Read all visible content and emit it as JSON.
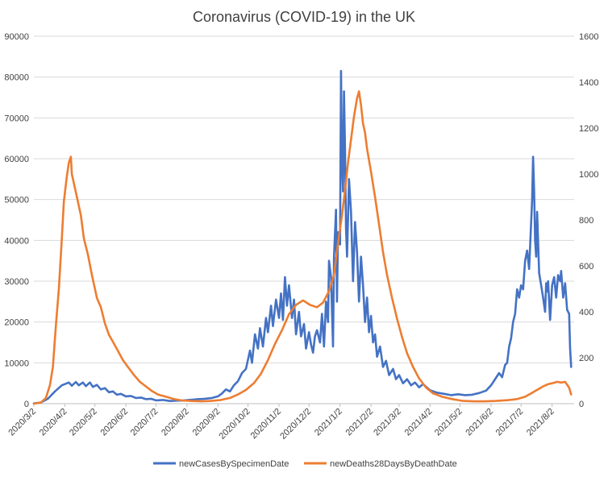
{
  "chart_data": {
    "type": "line",
    "title": "Coronavirus (COVID-19) in the UK",
    "xlabel": "",
    "ylabel": "",
    "y2label": "",
    "x_tick_labels": [
      "2020/3/2",
      "2020/4/2",
      "2020/5/2",
      "2020/6/2",
      "2020/7/2",
      "2020/8/2",
      "2020/9/2",
      "2020/10/2",
      "2020/11/2",
      "2020/12/2",
      "2021/1/2",
      "2021/2/2",
      "2021/3/2",
      "2021/4/2",
      "2021/5/2",
      "2021/6/2",
      "2021/7/2",
      "2021/8/2"
    ],
    "x_range": [
      "2020/3/2",
      "2021/8/24"
    ],
    "ylim": [
      0,
      90000
    ],
    "y_ticks": [
      "0",
      "10000",
      "20000",
      "30000",
      "40000",
      "50000",
      "60000",
      "70000",
      "80000",
      "90000"
    ],
    "y2lim": [
      0,
      1600
    ],
    "y2_ticks": [
      "0",
      "200",
      "400",
      "600",
      "800",
      "1000",
      "1200",
      "1400",
      "1600"
    ],
    "grid": true,
    "legend_position": "bottom",
    "series": [
      {
        "name": "newCasesBySpecimenDate",
        "axis": "left",
        "color": "#4472C4",
        "points": [
          [
            "2020/3/2",
            50
          ],
          [
            "2020/3/9",
            300
          ],
          [
            "2020/3/16",
            1200
          ],
          [
            "2020/3/23",
            3000
          ],
          [
            "2020/3/30",
            4500
          ],
          [
            "2020/4/2",
            4800
          ],
          [
            "2020/4/6",
            5200
          ],
          [
            "2020/4/9",
            4400
          ],
          [
            "2020/4/13",
            5300
          ],
          [
            "2020/4/16",
            4500
          ],
          [
            "2020/4/20",
            5200
          ],
          [
            "2020/4/23",
            4300
          ],
          [
            "2020/4/27",
            5200
          ],
          [
            "2020/4/30",
            4100
          ],
          [
            "2020/5/4",
            4600
          ],
          [
            "2020/5/8",
            3500
          ],
          [
            "2020/5/12",
            3800
          ],
          [
            "2020/5/16",
            2800
          ],
          [
            "2020/5/20",
            3000
          ],
          [
            "2020/5/24",
            2200
          ],
          [
            "2020/5/28",
            2400
          ],
          [
            "2020/6/2",
            1800
          ],
          [
            "2020/6/7",
            1900
          ],
          [
            "2020/6/12",
            1400
          ],
          [
            "2020/6/17",
            1500
          ],
          [
            "2020/6/22",
            1100
          ],
          [
            "2020/6/27",
            1200
          ],
          [
            "2020/7/2",
            800
          ],
          [
            "2020/7/9",
            900
          ],
          [
            "2020/7/16",
            650
          ],
          [
            "2020/7/23",
            750
          ],
          [
            "2020/7/30",
            800
          ],
          [
            "2020/8/6",
            950
          ],
          [
            "2020/8/13",
            1100
          ],
          [
            "2020/8/20",
            1200
          ],
          [
            "2020/8/27",
            1400
          ],
          [
            "2020/9/2",
            1800
          ],
          [
            "2020/9/6",
            2500
          ],
          [
            "2020/9/10",
            3500
          ],
          [
            "2020/9/14",
            3000
          ],
          [
            "2020/9/18",
            4500
          ],
          [
            "2020/9/22",
            5500
          ],
          [
            "2020/9/26",
            7500
          ],
          [
            "2020/9/30",
            8500
          ],
          [
            "2020/10/4",
            13000
          ],
          [
            "2020/10/6",
            10000
          ],
          [
            "2020/10/9",
            17000
          ],
          [
            "2020/10/12",
            13500
          ],
          [
            "2020/10/14",
            18500
          ],
          [
            "2020/10/17",
            14000
          ],
          [
            "2020/10/20",
            21000
          ],
          [
            "2020/10/22",
            17500
          ],
          [
            "2020/10/25",
            24000
          ],
          [
            "2020/10/27",
            19000
          ],
          [
            "2020/10/30",
            25500
          ],
          [
            "2020/11/2",
            21000
          ],
          [
            "2020/11/4",
            27000
          ],
          [
            "2020/11/6",
            20500
          ],
          [
            "2020/11/8",
            31000
          ],
          [
            "2020/11/10",
            24000
          ],
          [
            "2020/11/12",
            29000
          ],
          [
            "2020/11/15",
            21000
          ],
          [
            "2020/11/17",
            25500
          ],
          [
            "2020/11/19",
            17000
          ],
          [
            "2020/11/22",
            22500
          ],
          [
            "2020/11/24",
            16500
          ],
          [
            "2020/11/27",
            19500
          ],
          [
            "2020/11/29",
            13500
          ],
          [
            "2020/12/2",
            17500
          ],
          [
            "2020/12/4",
            14500
          ],
          [
            "2020/12/6",
            12500
          ],
          [
            "2020/12/8",
            16500
          ],
          [
            "2020/12/10",
            18000
          ],
          [
            "2020/12/13",
            15000
          ],
          [
            "2020/12/15",
            22000
          ],
          [
            "2020/12/17",
            14000
          ],
          [
            "2020/12/19",
            25000
          ],
          [
            "2020/12/21",
            20000
          ],
          [
            "2020/12/22",
            35000
          ],
          [
            "2020/12/24",
            31000
          ],
          [
            "2020/12/26",
            14000
          ],
          [
            "2020/12/27",
            36000
          ],
          [
            "2020/12/29",
            47500
          ],
          [
            "2020/12/30",
            25000
          ],
          [
            "2020/12/31",
            42000
          ],
          [
            "2021/1/2",
            39000
          ],
          [
            "2021/1/3",
            81500
          ],
          [
            "2021/1/4",
            60000
          ],
          [
            "2021/1/5",
            52000
          ],
          [
            "2021/1/6",
            76500
          ],
          [
            "2021/1/7",
            62000
          ],
          [
            "2021/1/8",
            43000
          ],
          [
            "2021/1/9",
            36000
          ],
          [
            "2021/1/11",
            55000
          ],
          [
            "2021/1/13",
            47000
          ],
          [
            "2021/1/15",
            30000
          ],
          [
            "2021/1/17",
            44500
          ],
          [
            "2021/1/19",
            37000
          ],
          [
            "2021/1/21",
            25000
          ],
          [
            "2021/1/23",
            36000
          ],
          [
            "2021/1/25",
            29000
          ],
          [
            "2021/1/27",
            20000
          ],
          [
            "2021/1/29",
            26000
          ],
          [
            "2021/1/31",
            17500
          ],
          [
            "2021/2/2",
            21500
          ],
          [
            "2021/2/4",
            15000
          ],
          [
            "2021/2/6",
            17000
          ],
          [
            "2021/2/8",
            11500
          ],
          [
            "2021/2/11",
            14000
          ],
          [
            "2021/2/14",
            9000
          ],
          [
            "2021/2/17",
            10500
          ],
          [
            "2021/2/20",
            7000
          ],
          [
            "2021/2/24",
            8500
          ],
          [
            "2021/2/27",
            6000
          ],
          [
            "2021/3/2",
            7000
          ],
          [
            "2021/3/6",
            5000
          ],
          [
            "2021/3/10",
            6000
          ],
          [
            "2021/3/14",
            4500
          ],
          [
            "2021/3/18",
            5200
          ],
          [
            "2021/3/22",
            4000
          ],
          [
            "2021/3/26",
            4800
          ],
          [
            "2021/4/2",
            3300
          ],
          [
            "2021/4/9",
            2700
          ],
          [
            "2021/4/16",
            2400
          ],
          [
            "2021/4/23",
            2100
          ],
          [
            "2021/4/30",
            2300
          ],
          [
            "2021/5/7",
            2100
          ],
          [
            "2021/5/14",
            2200
          ],
          [
            "2021/5/21",
            2600
          ],
          [
            "2021/5/28",
            3200
          ],
          [
            "2021/6/2",
            4500
          ],
          [
            "2021/6/6",
            6000
          ],
          [
            "2021/6/10",
            7500
          ],
          [
            "2021/6/13",
            6500
          ],
          [
            "2021/6/16",
            9500
          ],
          [
            "2021/6/18",
            10000
          ],
          [
            "2021/6/20",
            14000
          ],
          [
            "2021/6/22",
            16000
          ],
          [
            "2021/6/24",
            20000
          ],
          [
            "2021/6/26",
            22000
          ],
          [
            "2021/6/28",
            28000
          ],
          [
            "2021/6/30",
            26000
          ],
          [
            "2021/7/2",
            29000
          ],
          [
            "2021/7/4",
            28000
          ],
          [
            "2021/7/6",
            35000
          ],
          [
            "2021/7/8",
            37500
          ],
          [
            "2021/7/10",
            33000
          ],
          [
            "2021/7/12",
            44000
          ],
          [
            "2021/7/13",
            50000
          ],
          [
            "2021/7/14",
            60500
          ],
          [
            "2021/7/15",
            52000
          ],
          [
            "2021/7/16",
            40000
          ],
          [
            "2021/7/17",
            36000
          ],
          [
            "2021/7/18",
            47000
          ],
          [
            "2021/7/20",
            32000
          ],
          [
            "2021/7/22",
            29000
          ],
          [
            "2021/7/24",
            26000
          ],
          [
            "2021/7/26",
            22500
          ],
          [
            "2021/7/27",
            29500
          ],
          [
            "2021/7/28",
            27500
          ],
          [
            "2021/7/29",
            30000
          ],
          [
            "2021/7/31",
            20500
          ],
          [
            "2021/8/2",
            29000
          ],
          [
            "2021/8/4",
            31000
          ],
          [
            "2021/8/6",
            26000
          ],
          [
            "2021/8/8",
            31500
          ],
          [
            "2021/8/10",
            30000
          ],
          [
            "2021/8/11",
            32500
          ],
          [
            "2021/8/13",
            26000
          ],
          [
            "2021/8/15",
            29500
          ],
          [
            "2021/8/17",
            23000
          ],
          [
            "2021/8/19",
            22000
          ],
          [
            "2021/8/20",
            13500
          ],
          [
            "2021/8/21",
            9000
          ]
        ]
      },
      {
        "name": "newDeaths28DaysByDeathDate",
        "axis": "right",
        "color": "#ED7D31",
        "points": [
          [
            "2020/3/2",
            0
          ],
          [
            "2020/3/9",
            5
          ],
          [
            "2020/3/14",
            25
          ],
          [
            "2020/3/18",
            80
          ],
          [
            "2020/3/21",
            160
          ],
          [
            "2020/3/24",
            340
          ],
          [
            "2020/3/27",
            500
          ],
          [
            "2020/3/30",
            720
          ],
          [
            "2020/4/1",
            880
          ],
          [
            "2020/4/4",
            990
          ],
          [
            "2020/4/6",
            1050
          ],
          [
            "2020/4/8",
            1075
          ],
          [
            "2020/4/9",
            1000
          ],
          [
            "2020/4/11",
            960
          ],
          [
            "2020/4/13",
            920
          ],
          [
            "2020/4/15",
            880
          ],
          [
            "2020/4/18",
            820
          ],
          [
            "2020/4/21",
            720
          ],
          [
            "2020/4/25",
            650
          ],
          [
            "2020/4/29",
            560
          ],
          [
            "2020/5/4",
            460
          ],
          [
            "2020/5/8",
            420
          ],
          [
            "2020/5/12",
            350
          ],
          [
            "2020/5/16",
            300
          ],
          [
            "2020/5/20",
            270
          ],
          [
            "2020/5/25",
            230
          ],
          [
            "2020/5/30",
            190
          ],
          [
            "2020/6/4",
            160
          ],
          [
            "2020/6/10",
            125
          ],
          [
            "2020/6/16",
            95
          ],
          [
            "2020/6/22",
            75
          ],
          [
            "2020/6/28",
            55
          ],
          [
            "2020/7/4",
            40
          ],
          [
            "2020/7/12",
            30
          ],
          [
            "2020/7/20",
            20
          ],
          [
            "2020/7/28",
            14
          ],
          [
            "2020/8/6",
            12
          ],
          [
            "2020/8/16",
            10
          ],
          [
            "2020/8/26",
            12
          ],
          [
            "2020/9/5",
            16
          ],
          [
            "2020/9/14",
            25
          ],
          [
            "2020/9/22",
            40
          ],
          [
            "2020/9/30",
            60
          ],
          [
            "2020/10/8",
            90
          ],
          [
            "2020/10/15",
            130
          ],
          [
            "2020/10/22",
            190
          ],
          [
            "2020/10/29",
            260
          ],
          [
            "2020/11/5",
            320
          ],
          [
            "2020/11/12",
            390
          ],
          [
            "2020/11/19",
            430
          ],
          [
            "2020/11/26",
            450
          ],
          [
            "2020/12/3",
            430
          ],
          [
            "2020/12/10",
            420
          ],
          [
            "2020/12/16",
            440
          ],
          [
            "2020/12/22",
            490
          ],
          [
            "2020/12/27",
            560
          ],
          [
            "2020/12/31",
            700
          ],
          [
            "2021/1/4",
            820
          ],
          [
            "2021/1/7",
            930
          ],
          [
            "2021/1/10",
            1050
          ],
          [
            "2021/1/13",
            1150
          ],
          [
            "2021/1/16",
            1250
          ],
          [
            "2021/1/19",
            1330
          ],
          [
            "2021/1/21",
            1360
          ],
          [
            "2021/1/23",
            1300
          ],
          [
            "2021/1/25",
            1220
          ],
          [
            "2021/1/27",
            1180
          ],
          [
            "2021/1/29",
            1110
          ],
          [
            "2021/2/2",
            1010
          ],
          [
            "2021/2/6",
            900
          ],
          [
            "2021/2/10",
            780
          ],
          [
            "2021/2/14",
            660
          ],
          [
            "2021/2/18",
            560
          ],
          [
            "2021/2/23",
            460
          ],
          [
            "2021/2/28",
            370
          ],
          [
            "2021/3/5",
            290
          ],
          [
            "2021/3/10",
            220
          ],
          [
            "2021/3/16",
            160
          ],
          [
            "2021/3/22",
            110
          ],
          [
            "2021/3/29",
            70
          ],
          [
            "2021/4/5",
            45
          ],
          [
            "2021/4/14",
            30
          ],
          [
            "2021/4/24",
            20
          ],
          [
            "2021/5/5",
            12
          ],
          [
            "2021/5/16",
            10
          ],
          [
            "2021/5/27",
            10
          ],
          [
            "2021/6/7",
            12
          ],
          [
            "2021/6/18",
            15
          ],
          [
            "2021/6/28",
            20
          ],
          [
            "2021/7/6",
            30
          ],
          [
            "2021/7/12",
            45
          ],
          [
            "2021/7/18",
            60
          ],
          [
            "2021/7/24",
            75
          ],
          [
            "2021/7/29",
            85
          ],
          [
            "2021/8/3",
            90
          ],
          [
            "2021/8/7",
            95
          ],
          [
            "2021/8/11",
            92
          ],
          [
            "2021/8/15",
            95
          ],
          [
            "2021/8/19",
            70
          ],
          [
            "2021/8/21",
            40
          ]
        ]
      }
    ]
  }
}
